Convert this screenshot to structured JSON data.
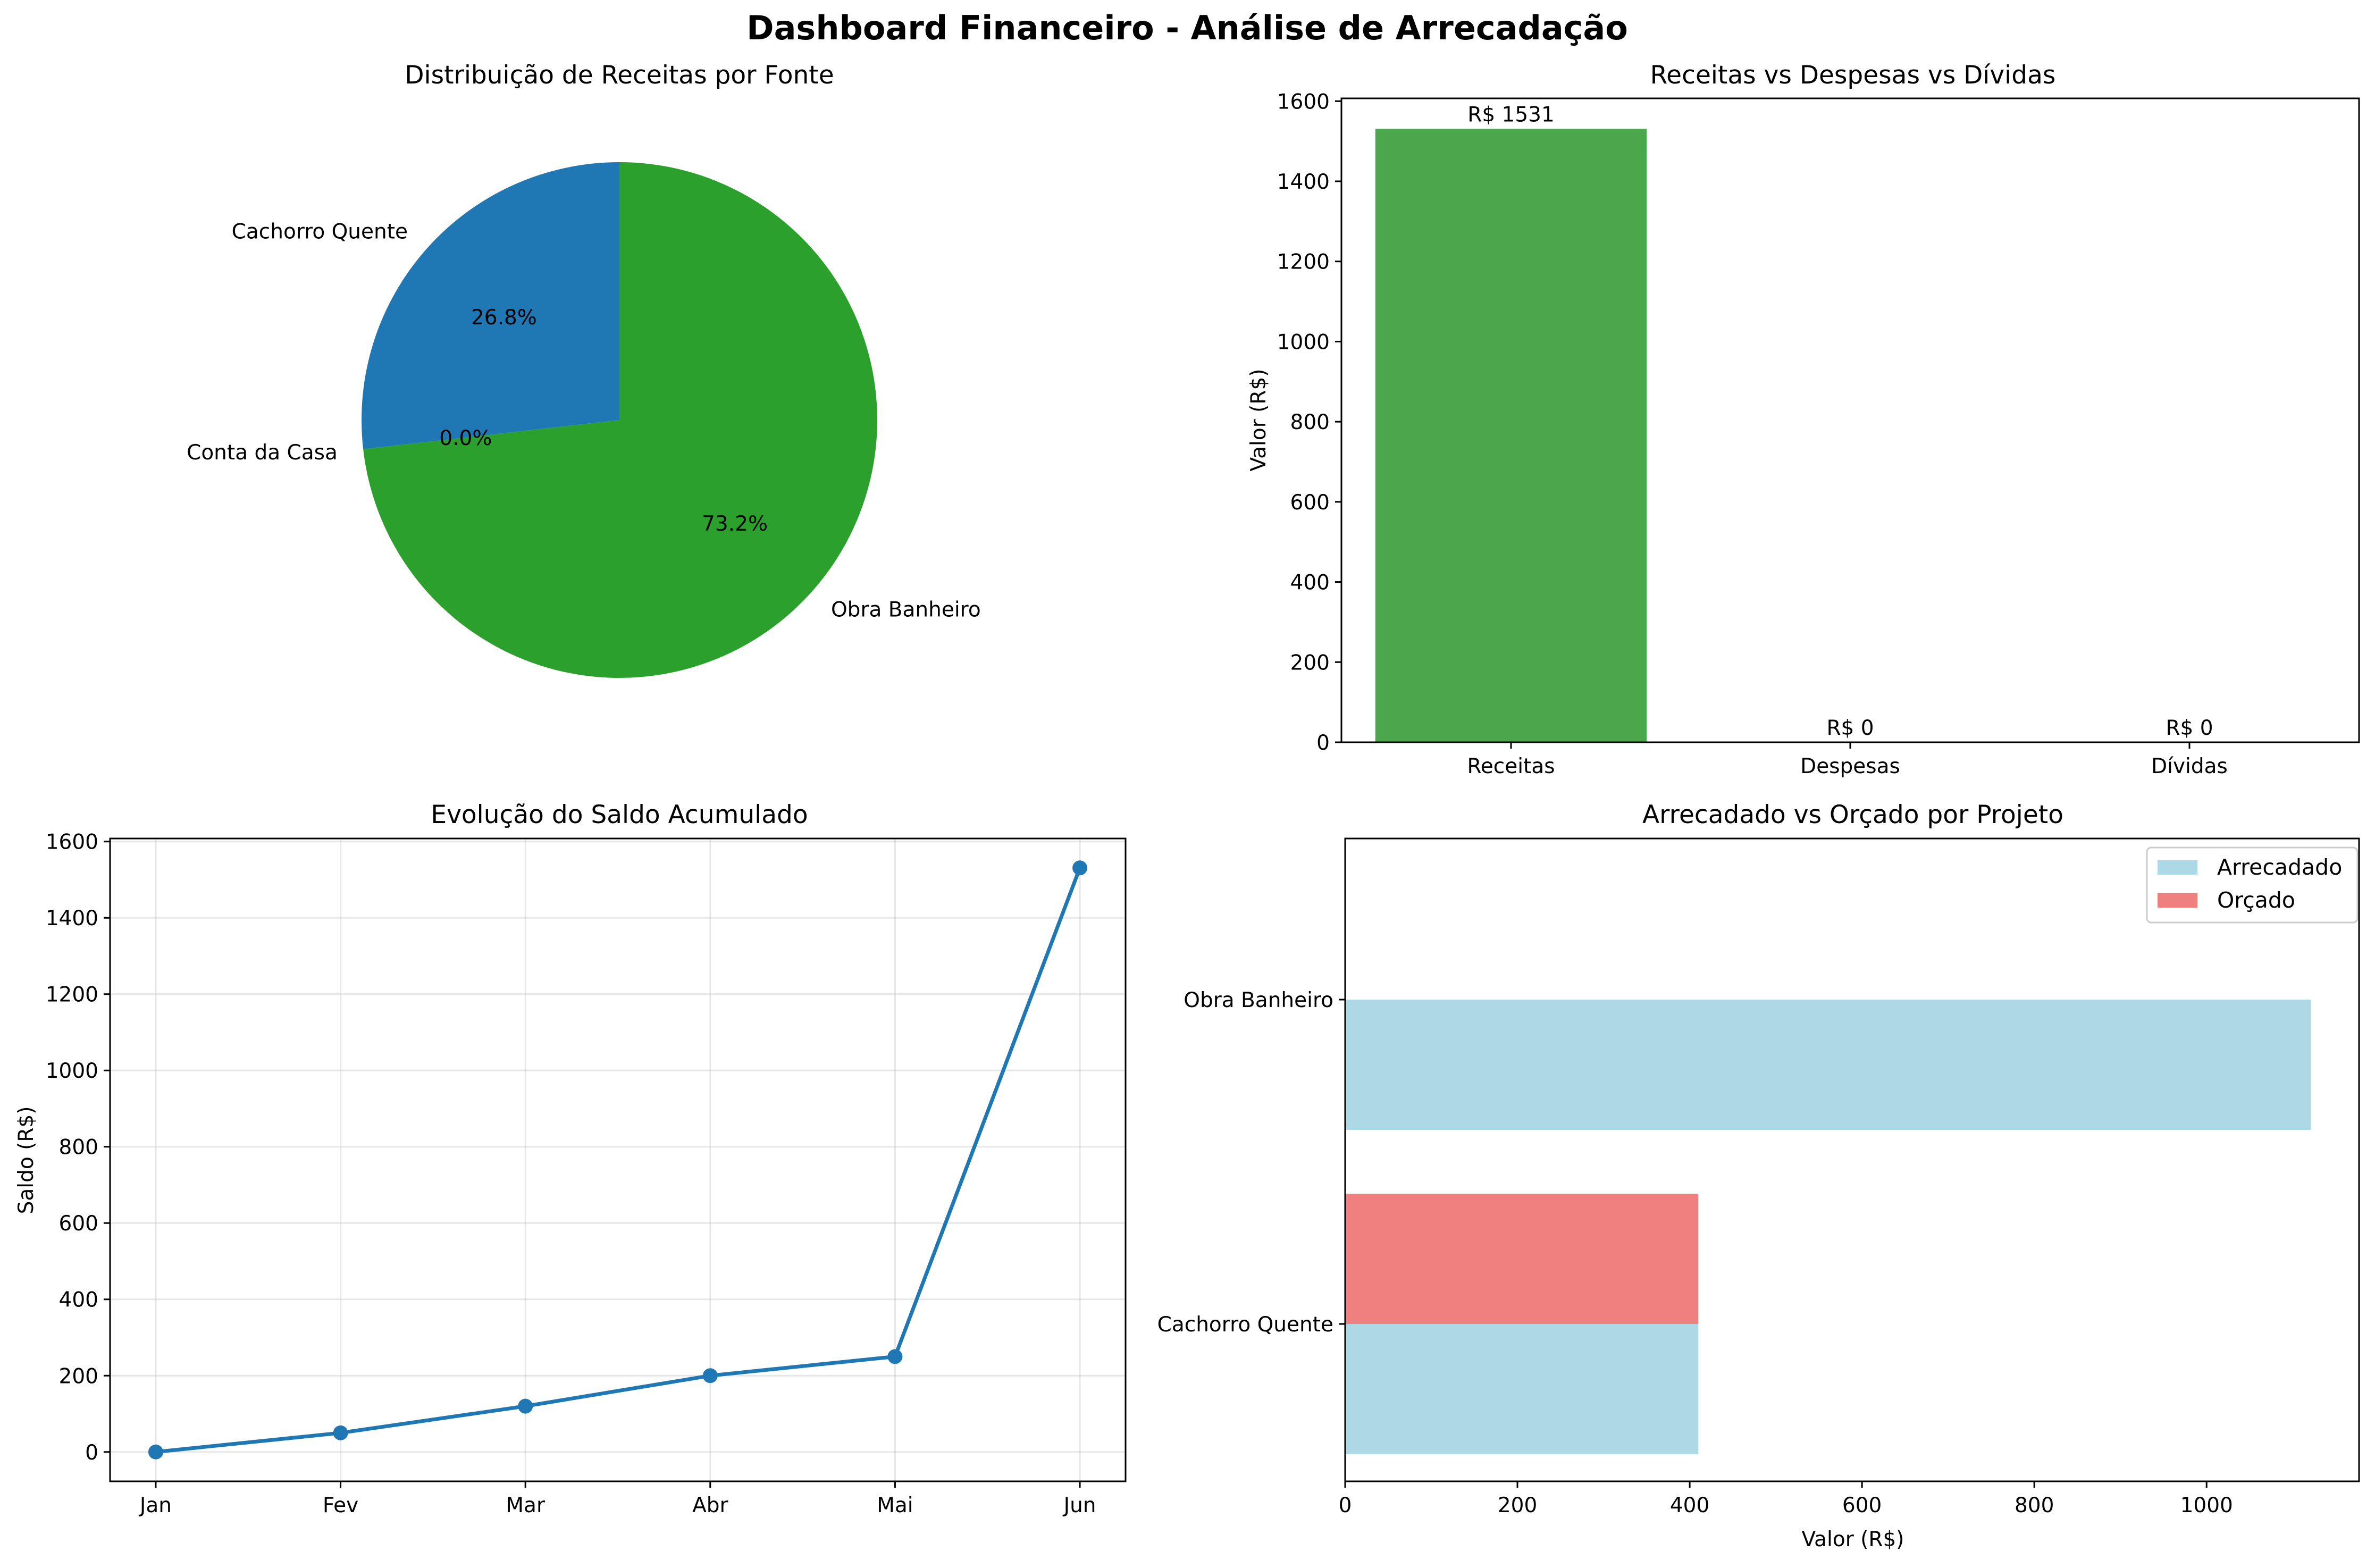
{
  "figure": {
    "title": "Dashboard Financeiro - Análise de Arrecadação"
  },
  "chart_data": [
    {
      "type": "pie",
      "title": "Distribuição de Receitas por Fonte",
      "slices": [
        {
          "label": "Cachorro Quente",
          "percent": 26.8,
          "pct_label": "26.8%",
          "color": "#1f77b4"
        },
        {
          "label": "Conta da Casa",
          "percent": 0.0,
          "pct_label": "0.0%",
          "color": "#ff7f0e"
        },
        {
          "label": "Obra Banheiro",
          "percent": 73.2,
          "pct_label": "73.2%",
          "color": "#2ca02c"
        }
      ],
      "start_angle": 90,
      "direction": "counterclockwise"
    },
    {
      "type": "bar",
      "title": "Receitas vs Despesas vs Dívidas",
      "categories": [
        "Receitas",
        "Despesas",
        "Dívidas"
      ],
      "values": [
        1531,
        0,
        0
      ],
      "value_labels": [
        "R$ 1531",
        "R$ 0",
        "R$ 0"
      ],
      "colors": [
        "#4ca64c",
        "#d62728",
        "#ff7f0e"
      ],
      "ylabel": "Valor (R$)",
      "ylim": [
        0,
        1607
      ],
      "yticks": [
        0,
        200,
        400,
        600,
        800,
        1000,
        1200,
        1400,
        1600
      ],
      "grid": false
    },
    {
      "type": "line",
      "title": "Evolução do Saldo Acumulado",
      "categories": [
        "Jan",
        "Fev",
        "Mar",
        "Abr",
        "Mai",
        "Jun"
      ],
      "values": [
        0,
        50,
        120,
        200,
        250,
        1531
      ],
      "ylabel": "Saldo (R$)",
      "ylim": [
        -77,
        1608
      ],
      "yticks": [
        0,
        200,
        400,
        600,
        800,
        1000,
        1200,
        1400,
        1600
      ],
      "color": "#1f77b4",
      "grid": true
    },
    {
      "type": "bar",
      "orientation": "horizontal",
      "title": "Arrecadado vs Orçado por Projeto",
      "categories": [
        "Cachorro Quente",
        "Obra Banheiro"
      ],
      "series": [
        {
          "name": "Arrecadado",
          "values": [
            410,
            1121
          ],
          "color": "#add8e6"
        },
        {
          "name": "Orçado",
          "values": [
            410,
            0
          ],
          "color": "#f08080"
        }
      ],
      "xlabel": "Valor (R$)",
      "xlim": [
        0,
        1177
      ],
      "xticks": [
        0,
        200,
        400,
        600,
        800,
        1000
      ],
      "legend_position": "top-right",
      "grid": false
    }
  ]
}
